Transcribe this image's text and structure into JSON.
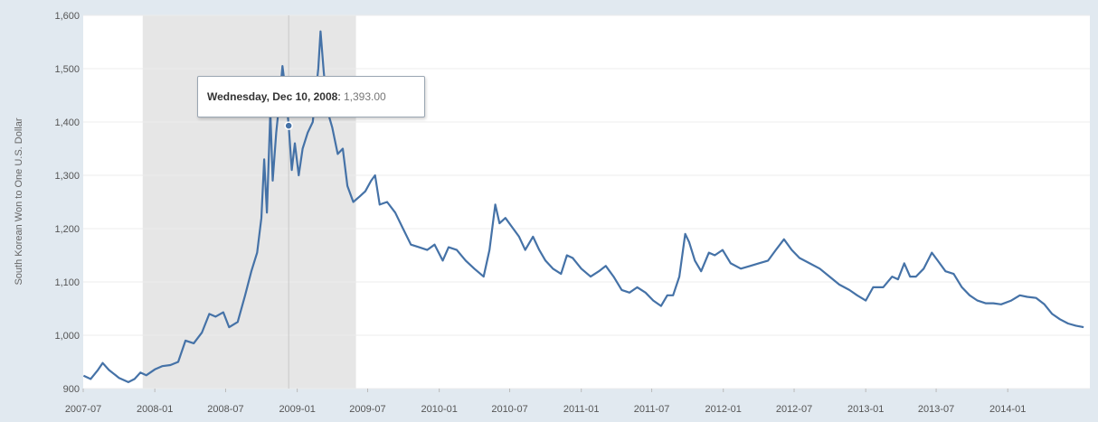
{
  "chart_data": {
    "type": "line",
    "title": "",
    "xlabel": "",
    "ylabel": "South Korean Won to One U.S. Dollar",
    "ylim": [
      900,
      1600
    ],
    "xlim": [
      "2007-07-01",
      "2014-07-31"
    ],
    "y_ticks": [
      "900",
      "1,000",
      "1,100",
      "1,200",
      "1,300",
      "1,400",
      "1,500",
      "1,600"
    ],
    "y_tick_values": [
      900,
      1000,
      1100,
      1200,
      1300,
      1400,
      1500,
      1600
    ],
    "x_ticks": [
      "2007-07",
      "2008-01",
      "2008-07",
      "2009-01",
      "2009-07",
      "2010-01",
      "2010-07",
      "2011-01",
      "2011-07",
      "2012-01",
      "2012-07",
      "2013-01",
      "2013-07",
      "2014-01"
    ],
    "x_tick_dates": [
      "2007-07-01",
      "2008-01-01",
      "2008-07-01",
      "2009-01-01",
      "2009-07-01",
      "2010-01-01",
      "2010-07-01",
      "2011-01-01",
      "2011-07-01",
      "2012-01-01",
      "2012-07-01",
      "2013-01-01",
      "2013-07-01",
      "2014-01-01"
    ],
    "grid": true,
    "line_color": "#4572a7",
    "recession_band": {
      "start": "2007-12-01",
      "end": "2009-06-01",
      "color": "#e6e6e6"
    },
    "crosshair_date": "2008-12-10",
    "tooltip": {
      "date": "Wednesday, Dec 10, 2008",
      "separator": ":",
      "value": "1,393.00"
    },
    "series": [
      {
        "points": [
          [
            "2007-07-02",
            924
          ],
          [
            "2007-07-20",
            918
          ],
          [
            "2007-08-08",
            935
          ],
          [
            "2007-08-20",
            948
          ],
          [
            "2007-09-05",
            935
          ],
          [
            "2007-10-01",
            920
          ],
          [
            "2007-10-25",
            912
          ],
          [
            "2007-11-10",
            918
          ],
          [
            "2007-11-25",
            930
          ],
          [
            "2007-12-10",
            925
          ],
          [
            "2008-01-01",
            936
          ],
          [
            "2008-01-20",
            942
          ],
          [
            "2008-02-10",
            944
          ],
          [
            "2008-03-01",
            950
          ],
          [
            "2008-03-20",
            990
          ],
          [
            "2008-04-10",
            985
          ],
          [
            "2008-05-01",
            1005
          ],
          [
            "2008-05-20",
            1040
          ],
          [
            "2008-06-05",
            1035
          ],
          [
            "2008-06-25",
            1043
          ],
          [
            "2008-07-10",
            1015
          ],
          [
            "2008-08-01",
            1025
          ],
          [
            "2008-08-20",
            1075
          ],
          [
            "2008-09-05",
            1120
          ],
          [
            "2008-09-20",
            1155
          ],
          [
            "2008-10-01",
            1220
          ],
          [
            "2008-10-08",
            1330
          ],
          [
            "2008-10-15",
            1230
          ],
          [
            "2008-10-24",
            1420
          ],
          [
            "2008-10-30",
            1290
          ],
          [
            "2008-11-08",
            1380
          ],
          [
            "2008-11-15",
            1430
          ],
          [
            "2008-11-24",
            1505
          ],
          [
            "2008-12-01",
            1465
          ],
          [
            "2008-12-10",
            1393
          ],
          [
            "2008-12-18",
            1310
          ],
          [
            "2008-12-26",
            1360
          ],
          [
            "2009-01-05",
            1300
          ],
          [
            "2009-01-15",
            1350
          ],
          [
            "2009-01-28",
            1380
          ],
          [
            "2009-02-10",
            1400
          ],
          [
            "2009-02-24",
            1500
          ],
          [
            "2009-03-02",
            1570
          ],
          [
            "2009-03-10",
            1495
          ],
          [
            "2009-03-20",
            1420
          ],
          [
            "2009-04-01",
            1390
          ],
          [
            "2009-04-15",
            1340
          ],
          [
            "2009-04-28",
            1350
          ],
          [
            "2009-05-10",
            1280
          ],
          [
            "2009-05-25",
            1250
          ],
          [
            "2009-06-10",
            1260
          ],
          [
            "2009-06-25",
            1270
          ],
          [
            "2009-07-10",
            1290
          ],
          [
            "2009-07-20",
            1300
          ],
          [
            "2009-08-01",
            1245
          ],
          [
            "2009-08-20",
            1250
          ],
          [
            "2009-09-10",
            1230
          ],
          [
            "2009-09-30",
            1200
          ],
          [
            "2009-10-20",
            1170
          ],
          [
            "2009-11-10",
            1165
          ],
          [
            "2009-12-01",
            1160
          ],
          [
            "2009-12-20",
            1170
          ],
          [
            "2010-01-10",
            1140
          ],
          [
            "2010-01-25",
            1165
          ],
          [
            "2010-02-15",
            1160
          ],
          [
            "2010-03-10",
            1140
          ],
          [
            "2010-04-01",
            1125
          ],
          [
            "2010-04-25",
            1110
          ],
          [
            "2010-05-10",
            1160
          ],
          [
            "2010-05-25",
            1245
          ],
          [
            "2010-06-05",
            1210
          ],
          [
            "2010-06-20",
            1220
          ],
          [
            "2010-07-05",
            1205
          ],
          [
            "2010-07-25",
            1185
          ],
          [
            "2010-08-10",
            1160
          ],
          [
            "2010-08-30",
            1185
          ],
          [
            "2010-09-15",
            1160
          ],
          [
            "2010-10-01",
            1140
          ],
          [
            "2010-10-20",
            1125
          ],
          [
            "2010-11-10",
            1115
          ],
          [
            "2010-11-25",
            1150
          ],
          [
            "2010-12-10",
            1145
          ],
          [
            "2011-01-01",
            1125
          ],
          [
            "2011-01-25",
            1110
          ],
          [
            "2011-02-15",
            1120
          ],
          [
            "2011-03-05",
            1130
          ],
          [
            "2011-03-25",
            1110
          ],
          [
            "2011-04-15",
            1085
          ],
          [
            "2011-05-05",
            1080
          ],
          [
            "2011-05-25",
            1090
          ],
          [
            "2011-06-15",
            1080
          ],
          [
            "2011-07-05",
            1065
          ],
          [
            "2011-07-25",
            1055
          ],
          [
            "2011-08-10",
            1075
          ],
          [
            "2011-08-25",
            1075
          ],
          [
            "2011-09-10",
            1110
          ],
          [
            "2011-09-25",
            1190
          ],
          [
            "2011-10-05",
            1175
          ],
          [
            "2011-10-20",
            1140
          ],
          [
            "2011-11-05",
            1120
          ],
          [
            "2011-11-25",
            1155
          ],
          [
            "2011-12-10",
            1150
          ],
          [
            "2011-12-30",
            1160
          ],
          [
            "2012-01-20",
            1135
          ],
          [
            "2012-02-15",
            1125
          ],
          [
            "2012-03-10",
            1130
          ],
          [
            "2012-04-01",
            1135
          ],
          [
            "2012-04-25",
            1140
          ],
          [
            "2012-05-15",
            1160
          ],
          [
            "2012-06-05",
            1180
          ],
          [
            "2012-06-25",
            1160
          ],
          [
            "2012-07-15",
            1145
          ],
          [
            "2012-08-10",
            1135
          ],
          [
            "2012-09-05",
            1125
          ],
          [
            "2012-09-30",
            1110
          ],
          [
            "2012-10-25",
            1095
          ],
          [
            "2012-11-20",
            1085
          ],
          [
            "2012-12-10",
            1075
          ],
          [
            "2013-01-01",
            1065
          ],
          [
            "2013-01-20",
            1090
          ],
          [
            "2013-02-15",
            1090
          ],
          [
            "2013-03-10",
            1110
          ],
          [
            "2013-03-25",
            1105
          ],
          [
            "2013-04-10",
            1135
          ],
          [
            "2013-04-25",
            1110
          ],
          [
            "2013-05-10",
            1110
          ],
          [
            "2013-05-30",
            1125
          ],
          [
            "2013-06-20",
            1155
          ],
          [
            "2013-07-05",
            1140
          ],
          [
            "2013-07-25",
            1120
          ],
          [
            "2013-08-15",
            1115
          ],
          [
            "2013-09-05",
            1090
          ],
          [
            "2013-09-25",
            1075
          ],
          [
            "2013-10-15",
            1065
          ],
          [
            "2013-11-05",
            1060
          ],
          [
            "2013-11-25",
            1060
          ],
          [
            "2013-12-15",
            1058
          ],
          [
            "2014-01-10",
            1065
          ],
          [
            "2014-02-01",
            1075
          ],
          [
            "2014-02-20",
            1072
          ],
          [
            "2014-03-15",
            1070
          ],
          [
            "2014-04-05",
            1058
          ],
          [
            "2014-04-25",
            1040
          ],
          [
            "2014-05-15",
            1030
          ],
          [
            "2014-06-05",
            1022
          ],
          [
            "2014-06-25",
            1018
          ],
          [
            "2014-07-15",
            1015
          ]
        ]
      }
    ]
  }
}
